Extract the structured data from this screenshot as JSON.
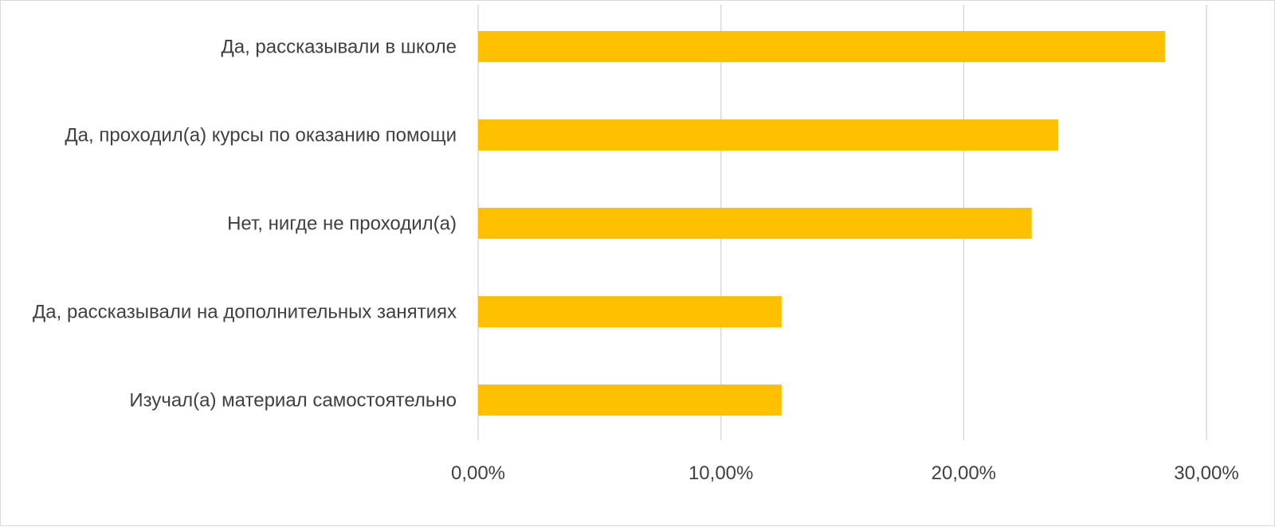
{
  "chart_data": {
    "type": "bar",
    "orientation": "horizontal",
    "categories": [
      "Да, рассказывали в школе",
      "Да, проходил(а) курсы по оказанию помощи",
      "Нет, нигде не проходил(а)",
      "Да, рассказывали на дополнительных занятиях",
      "Изучал(а) материал самостоятельно"
    ],
    "values": [
      28.3,
      23.9,
      22.8,
      12.5,
      12.5
    ],
    "x_ticks": [
      "0,00%",
      "10,00%",
      "20,00%",
      "30,00%"
    ],
    "tick_values": [
      0,
      10,
      20,
      30
    ],
    "xlim": [
      0,
      30
    ],
    "bar_color": "#FFC000",
    "grid": true,
    "legend": "none"
  }
}
